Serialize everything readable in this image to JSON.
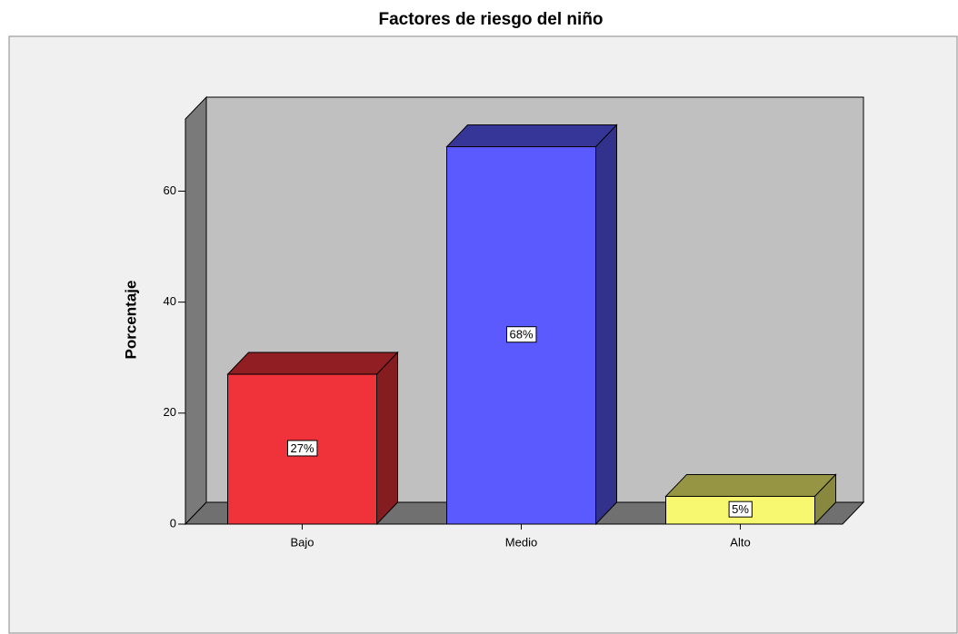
{
  "chart_data": {
    "type": "bar3d",
    "title": "Factores de riesgo del niño",
    "y_label": "Porcentaje",
    "categories": [
      "Bajo",
      "Medio",
      "Alto"
    ],
    "values": [
      27,
      68,
      5
    ],
    "value_labels": [
      "27%",
      "68%",
      "5%"
    ],
    "colors": [
      "#f0323a",
      "#5a5aff",
      "#f8f870"
    ],
    "ylim": [
      0,
      73
    ],
    "yticks": [
      0,
      20,
      40,
      60
    ]
  }
}
